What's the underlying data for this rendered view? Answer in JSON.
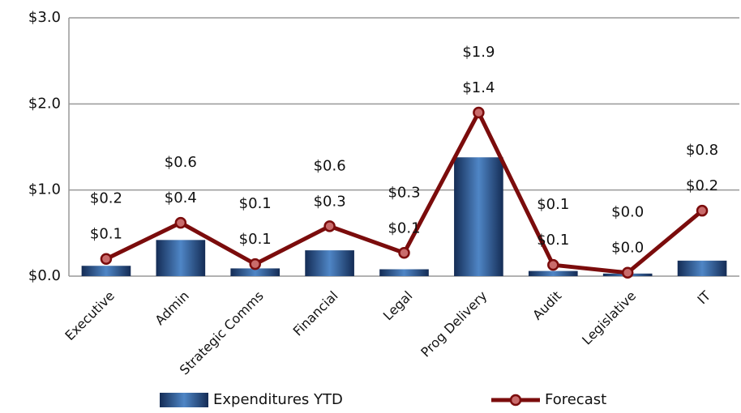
{
  "chart_data": {
    "type": "bar-line",
    "categories": [
      "Executive",
      "Admin",
      "Strategic Comms",
      "Financial",
      "Legal",
      "Prog Delivery",
      "Audit",
      "Legislative",
      "IT"
    ],
    "series": [
      {
        "name": "Expenditures YTD",
        "type": "bar",
        "color": "#1f3f73",
        "values": [
          0.12,
          0.42,
          0.09,
          0.3,
          0.08,
          1.38,
          0.06,
          0.03,
          0.18
        ],
        "value_labels": [
          "$0.1",
          "$0.4",
          "$0.1",
          "$0.3",
          "$0.1",
          "$1.4",
          "$0.1",
          "$0.0",
          "$0.2"
        ]
      },
      {
        "name": "Forecast",
        "type": "line",
        "color": "#7b0c0c",
        "values": [
          0.2,
          0.62,
          0.14,
          0.58,
          0.27,
          1.9,
          0.13,
          0.04,
          0.76
        ],
        "value_labels": [
          "$0.2",
          "$0.6",
          "$0.1",
          "$0.6",
          "$0.3",
          "$1.9",
          "$0.1",
          "$0.0",
          "$0.8"
        ]
      }
    ],
    "ylim": [
      0,
      3
    ],
    "yticks": [
      {
        "value": 0,
        "label": "$0.0"
      },
      {
        "value": 1,
        "label": "$1.0"
      },
      {
        "value": 2,
        "label": "$2.0"
      },
      {
        "value": 3,
        "label": "$3.0"
      }
    ],
    "grid": true,
    "legend": "bottom"
  }
}
